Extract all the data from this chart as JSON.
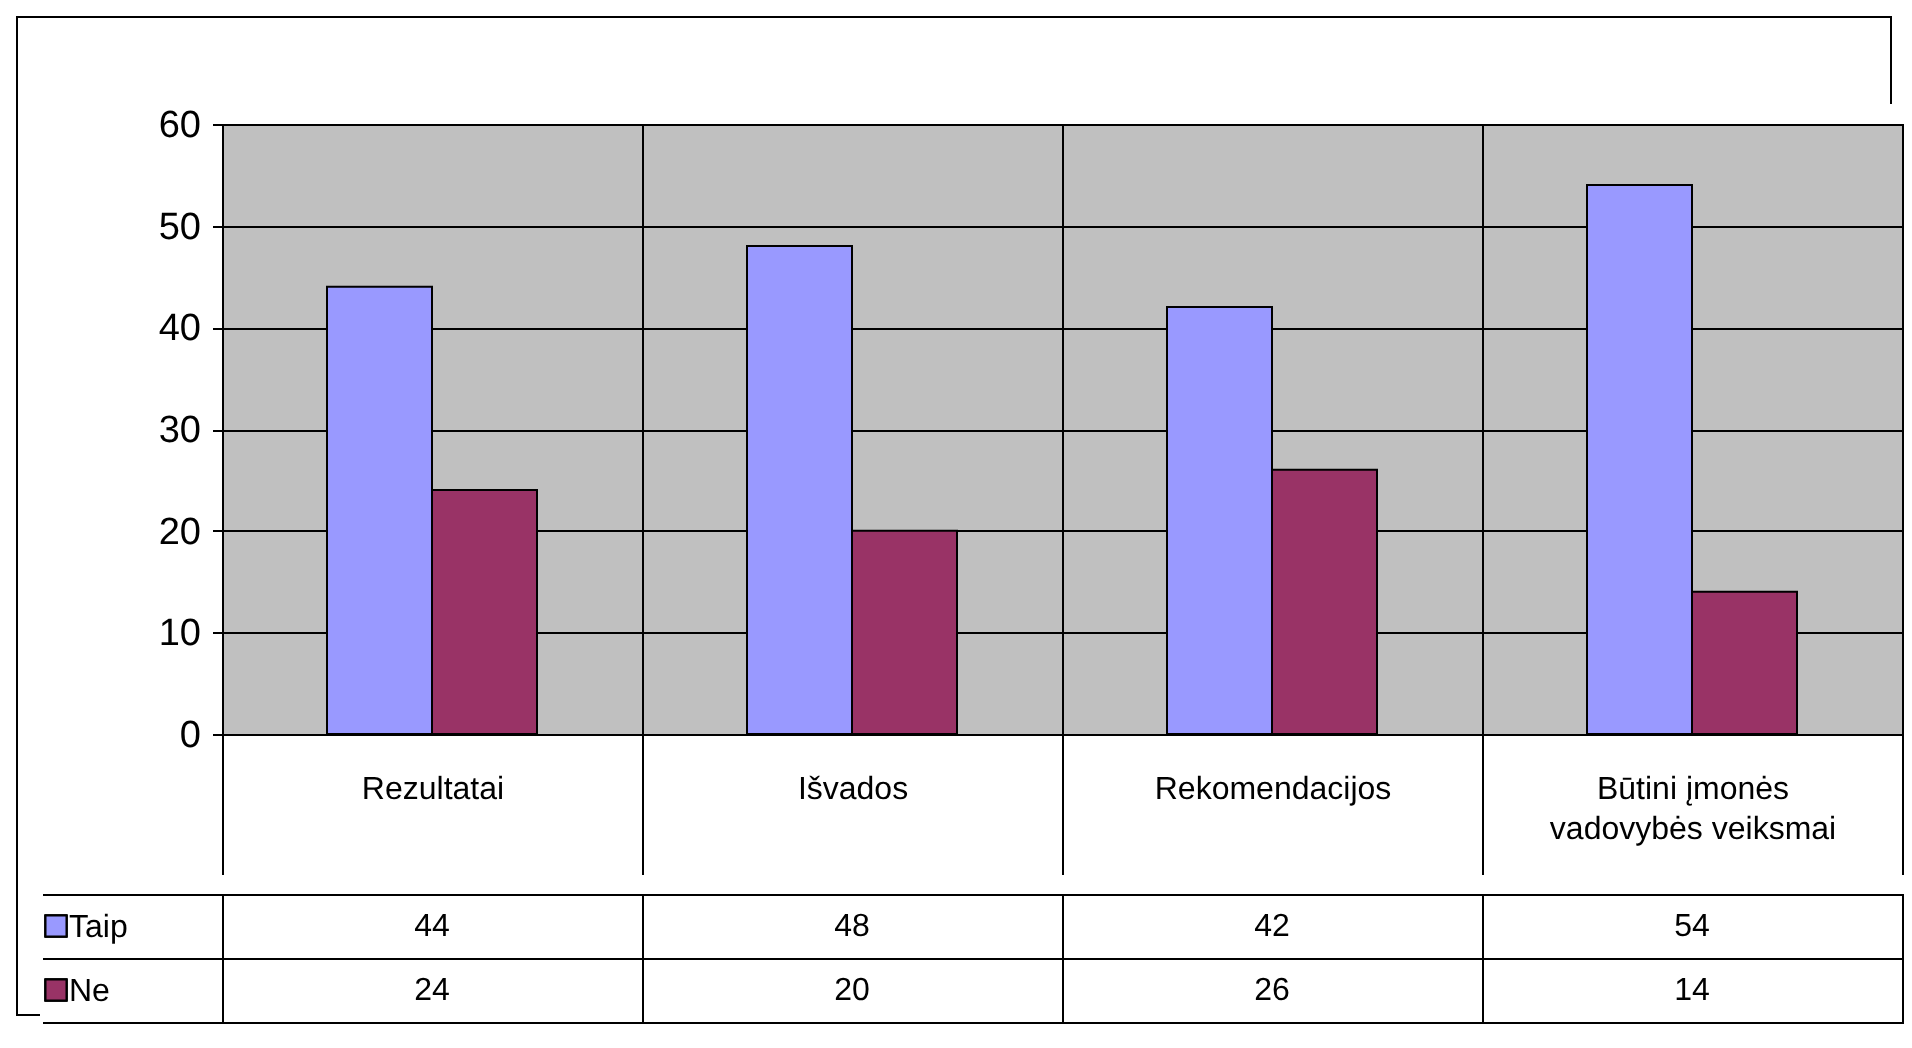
{
  "chart_data": {
    "type": "bar",
    "categories": [
      "Rezultatai",
      "Išvados",
      "Rekomendacijos",
      "Būtini įmonės vadovybės veiksmai"
    ],
    "series": [
      {
        "name": "Taip",
        "color": "#9999ff",
        "values": [
          44,
          48,
          42,
          54
        ]
      },
      {
        "name": "Ne",
        "color": "#993366",
        "values": [
          24,
          20,
          26,
          14
        ]
      }
    ],
    "ylim": [
      0,
      60
    ],
    "yticks": [
      0,
      10,
      20,
      30,
      40,
      50,
      60
    ],
    "grid": "y",
    "legend": "bottom left",
    "data_labels": true
  }
}
